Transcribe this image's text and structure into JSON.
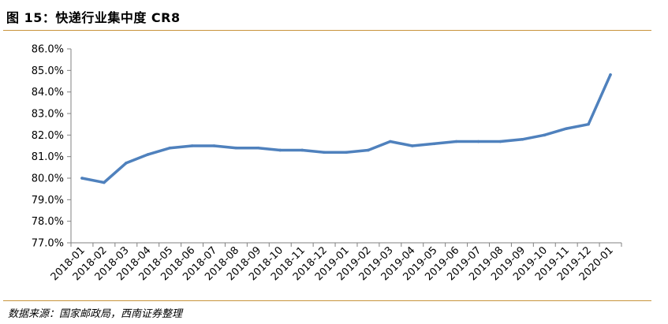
{
  "figure": {
    "title": "图 15：快递行业集中度 CR8",
    "source": "数据来源：国家邮政局，西南证券整理"
  },
  "chart_data": {
    "type": "line",
    "title": "",
    "xlabel": "",
    "ylabel": "",
    "ylim": [
      77.0,
      86.0
    ],
    "y_ticks": [
      "77.0%",
      "78.0%",
      "79.0%",
      "80.0%",
      "81.0%",
      "82.0%",
      "83.0%",
      "84.0%",
      "85.0%",
      "86.0%"
    ],
    "grid": false,
    "legend": "none",
    "x": [
      "2018-01",
      "2018-02",
      "2018-03",
      "2018-04",
      "2018-05",
      "2018-06",
      "2018-07",
      "2018-08",
      "2018-09",
      "2018-10",
      "2018-11",
      "2018-12",
      "2019-01",
      "2019-02",
      "2019-03",
      "2019-04",
      "2019-05",
      "2019-06",
      "2019-07",
      "2019-08",
      "2019-09",
      "2019-10",
      "2019-11",
      "2019-12",
      "2020-01"
    ],
    "series": [
      {
        "values": [
          80.0,
          79.8,
          80.7,
          81.1,
          81.4,
          81.5,
          81.5,
          81.4,
          81.4,
          81.3,
          81.3,
          81.2,
          81.2,
          81.3,
          81.7,
          81.5,
          81.6,
          81.7,
          81.7,
          81.7,
          81.8,
          82.0,
          82.3,
          82.5,
          84.8
        ],
        "color": "#4f81bd"
      }
    ]
  }
}
